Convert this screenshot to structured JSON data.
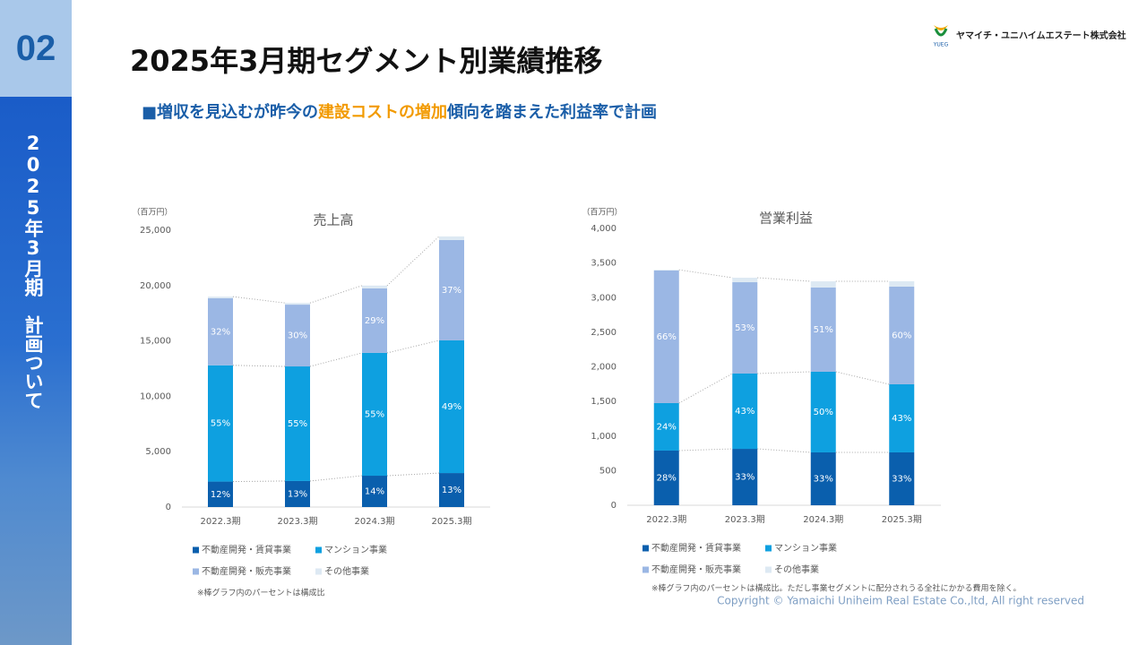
{
  "page": {
    "section_number": "02",
    "sidebar_title": "2025年3月期　計画ついて",
    "title": "2025年3月期セグメント別業績推移",
    "subtitle": {
      "lead": "■増収を見込むが昨今の",
      "highlight": "建設コストの増加",
      "tail": "傾向を踏まえた利益率で計画"
    },
    "logo_mark": "YUEG",
    "logo": "ヤマイチ・ユニハイムエステート株式会社",
    "copyright": "Copyright © Yamaichi Uniheim Real Estate Co.,ltd, All right reserved"
  },
  "chart_data": [
    {
      "type": "bar",
      "stacked": true,
      "title": "売上高",
      "unit": "（百万円）",
      "categories": [
        "2022.3期",
        "2023.3期",
        "2024.3期",
        "2025.3期"
      ],
      "series": [
        {
          "name": "不動産開発・賃貸事業",
          "color": "#0a5fad",
          "values": [
            2300,
            2350,
            2830,
            3070
          ],
          "labels": [
            "12%",
            "13%",
            "14%",
            "13%"
          ]
        },
        {
          "name": "マンション事業",
          "color": "#0ea0e0",
          "values": [
            10500,
            10350,
            11090,
            11980
          ],
          "labels": [
            "55%",
            "55%",
            "55%",
            "49%"
          ]
        },
        {
          "name": "不動産開発・販売事業",
          "color": "#9bb7e4",
          "values": [
            6050,
            5580,
            5830,
            9060
          ],
          "labels": [
            "32%",
            "30%",
            "29%",
            "37%"
          ]
        },
        {
          "name": "その他事業",
          "color": "#dde9f3",
          "values": [
            150,
            150,
            250,
            330
          ]
        }
      ],
      "ylim": [
        0,
        25000
      ],
      "yticks": [
        0,
        {
          "value": 5000,
          "label": "5,000"
        },
        {
          "value": 10000,
          "label": "10,000"
        },
        {
          "value": 15000,
          "label": "15,000"
        },
        {
          "value": 20000,
          "label": "20,000"
        },
        {
          "value": 25000,
          "label": "25,000"
        }
      ],
      "note": "※棒グラフ内のパーセントは構成比"
    },
    {
      "type": "bar",
      "stacked": true,
      "title": "営業利益",
      "unit": "（百万円）",
      "categories": [
        "2022.3期",
        "2023.3期",
        "2024.3期",
        "2025.3期"
      ],
      "series": [
        {
          "name": "不動産開発・賃貸事業",
          "color": "#0a5fad",
          "values": [
            790,
            815,
            764,
            764
          ],
          "labels": [
            "28%",
            "33%",
            "33%",
            "33%"
          ]
        },
        {
          "name": "マンション事業",
          "color": "#0ea0e0",
          "values": [
            686,
            1088,
            1165,
            984
          ],
          "labels": [
            "24%",
            "43%",
            "50%",
            "43%"
          ]
        },
        {
          "name": "不動産開発・販売事業",
          "color": "#9bb7e4",
          "values": [
            1916,
            1320,
            1217,
            1411
          ],
          "labels": [
            "66%",
            "53%",
            "51%",
            "60%"
          ]
        },
        {
          "name": "その他事業",
          "color": "#dde9f3",
          "values": [
            10,
            65,
            90,
            78
          ]
        }
      ],
      "ylim": [
        0,
        4000
      ],
      "yticks": [
        0,
        {
          "value": 500,
          "label": "500"
        },
        {
          "value": 1000,
          "label": "1,000"
        },
        {
          "value": 1500,
          "label": "1,500"
        },
        {
          "value": 2000,
          "label": "2,000"
        },
        {
          "value": 2500,
          "label": "2,500"
        },
        {
          "value": 3000,
          "label": "3,000"
        },
        {
          "value": 3500,
          "label": "3,500"
        },
        {
          "value": 4000,
          "label": "4,000"
        }
      ],
      "note": "※棒グラフ内のパーセントは構成比。ただし事業セグメントに配分されうる全社にかかる費用を除く。"
    }
  ]
}
